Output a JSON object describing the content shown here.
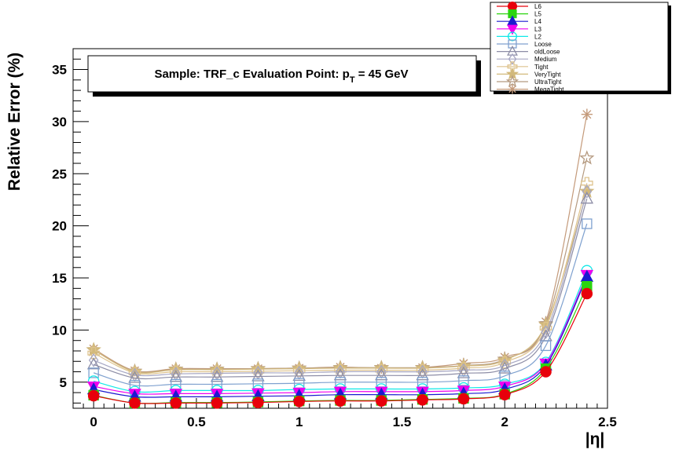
{
  "chart_data": {
    "type": "line",
    "title": "Sample: TRF_c Evaluation Point: p",
    "title_sub": "T",
    "title_tail": " = 45 GeV",
    "xlabel": "|η|",
    "ylabel": "Relative Error (%)",
    "xlim": [
      -0.1,
      2.5
    ],
    "ylim": [
      2.5,
      37
    ],
    "xticks": [
      0,
      0.5,
      1,
      1.5,
      2,
      2.5
    ],
    "xtick_labels": [
      "0",
      "0.5",
      "1",
      "1.5",
      "2",
      "2.5"
    ],
    "yticks": [
      5,
      10,
      15,
      20,
      25,
      30,
      35
    ],
    "ytick_labels": [
      "5",
      "10",
      "15",
      "20",
      "25",
      "30",
      "35"
    ],
    "grid": false,
    "legend_position": "top-right",
    "x": [
      0,
      0.2,
      0.4,
      0.6,
      0.8,
      1.0,
      1.2,
      1.4,
      1.6,
      1.8,
      2.0,
      2.2,
      2.4
    ],
    "series": [
      {
        "name": "L6",
        "color": "#e8000b",
        "marker": "circle-filled",
        "values": [
          3.7,
          3.0,
          3.0,
          3.0,
          3.05,
          3.15,
          3.2,
          3.2,
          3.3,
          3.4,
          3.8,
          6.0,
          13.5
        ]
      },
      {
        "name": "L5",
        "color": "#2bd40f",
        "marker": "square-filled",
        "values": [
          3.75,
          3.0,
          3.05,
          3.05,
          3.1,
          3.2,
          3.25,
          3.25,
          3.35,
          3.45,
          3.85,
          6.3,
          14.2
        ]
      },
      {
        "name": "L4",
        "color": "#1a1acf",
        "marker": "triangle-up-filled",
        "values": [
          4.3,
          3.6,
          3.6,
          3.6,
          3.65,
          3.7,
          3.8,
          3.8,
          3.8,
          3.9,
          4.3,
          6.6,
          15.1
        ]
      },
      {
        "name": "L3",
        "color": "#ef00ef",
        "marker": "triangle-down-filled",
        "values": [
          4.6,
          3.9,
          3.9,
          3.9,
          3.95,
          4.0,
          4.1,
          4.1,
          4.1,
          4.2,
          4.6,
          6.8,
          15.3
        ]
      },
      {
        "name": "L2",
        "color": "#10e8e8",
        "marker": "circle-open",
        "values": [
          5.1,
          4.1,
          4.2,
          4.2,
          4.2,
          4.3,
          4.35,
          4.35,
          4.35,
          4.45,
          4.8,
          6.9,
          15.7
        ]
      },
      {
        "name": "Loose",
        "color": "#7fa1cf",
        "marker": "square-open",
        "values": [
          5.9,
          4.7,
          4.8,
          4.8,
          4.85,
          4.9,
          5.0,
          5.0,
          5.0,
          5.15,
          5.6,
          8.5,
          20.2
        ]
      },
      {
        "name": "oldLoose",
        "color": "#8d8da6",
        "marker": "triangle-up-open",
        "values": [
          6.7,
          5.4,
          5.5,
          5.5,
          5.55,
          5.6,
          5.65,
          5.65,
          5.65,
          5.85,
          6.3,
          9.4,
          22.6
        ]
      },
      {
        "name": "Medium",
        "color": "#a7a7c3",
        "marker": "diamond-open",
        "values": [
          7.1,
          5.7,
          5.8,
          5.85,
          5.9,
          5.9,
          6.0,
          6.0,
          6.0,
          6.15,
          6.6,
          9.8,
          23.3
        ]
      },
      {
        "name": "Tight",
        "color": "#dec38d",
        "marker": "cross-open",
        "values": [
          7.8,
          5.9,
          6.0,
          6.0,
          6.05,
          6.1,
          6.15,
          6.15,
          6.15,
          6.35,
          6.9,
          10.2,
          24.1
        ]
      },
      {
        "name": "VeryTight",
        "color": "#d2b97b",
        "marker": "star",
        "values": [
          8.1,
          6.0,
          6.2,
          6.2,
          6.25,
          6.3,
          6.35,
          6.35,
          6.35,
          6.55,
          7.1,
          10.5,
          23.3
        ]
      },
      {
        "name": "UltraTight",
        "color": "#b59a80",
        "marker": "star-open",
        "values": [
          8.1,
          6.05,
          6.25,
          6.25,
          6.3,
          6.35,
          6.4,
          6.4,
          6.4,
          6.6,
          7.2,
          10.6,
          26.5
        ]
      },
      {
        "name": "MegaTight",
        "color": "#c49a7a",
        "marker": "asterisk",
        "values": [
          8.2,
          6.1,
          6.3,
          6.3,
          6.3,
          6.35,
          6.45,
          6.35,
          6.4,
          6.8,
          7.4,
          10.8,
          30.7
        ]
      }
    ]
  }
}
